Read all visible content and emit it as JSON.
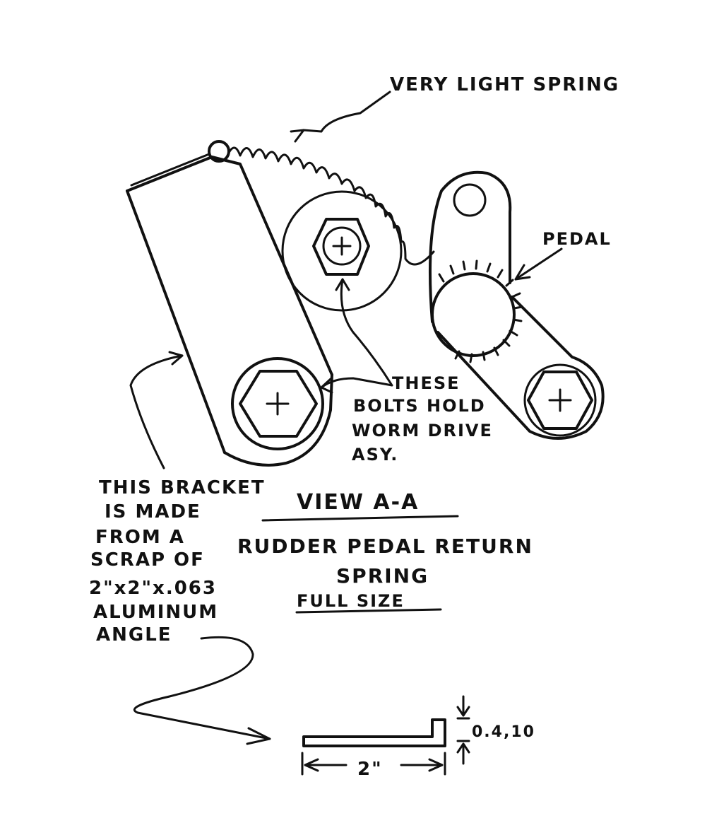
{
  "labels": {
    "spring": "VERY LIGHT SPRING",
    "pedal": "PEDAL",
    "bolts": [
      "THESE",
      "BOLTS HOLD",
      "WORM DRIVE",
      "ASY."
    ],
    "bracket": [
      "THIS BRACKET",
      "IS MADE",
      "FROM A",
      "SCRAP OF",
      "2\"x2\"x.063",
      "ALUMINUM",
      "ANGLE"
    ],
    "view": "VIEW  A-A",
    "title_line1": "RUDDER PEDAL RETURN",
    "title_line2": "SPRING",
    "scale": "FULL  SIZE",
    "dim_width": "2\"",
    "dim_height": "0.4,10"
  },
  "colors": {
    "ink": "#111111",
    "paper": "#ffffff"
  }
}
